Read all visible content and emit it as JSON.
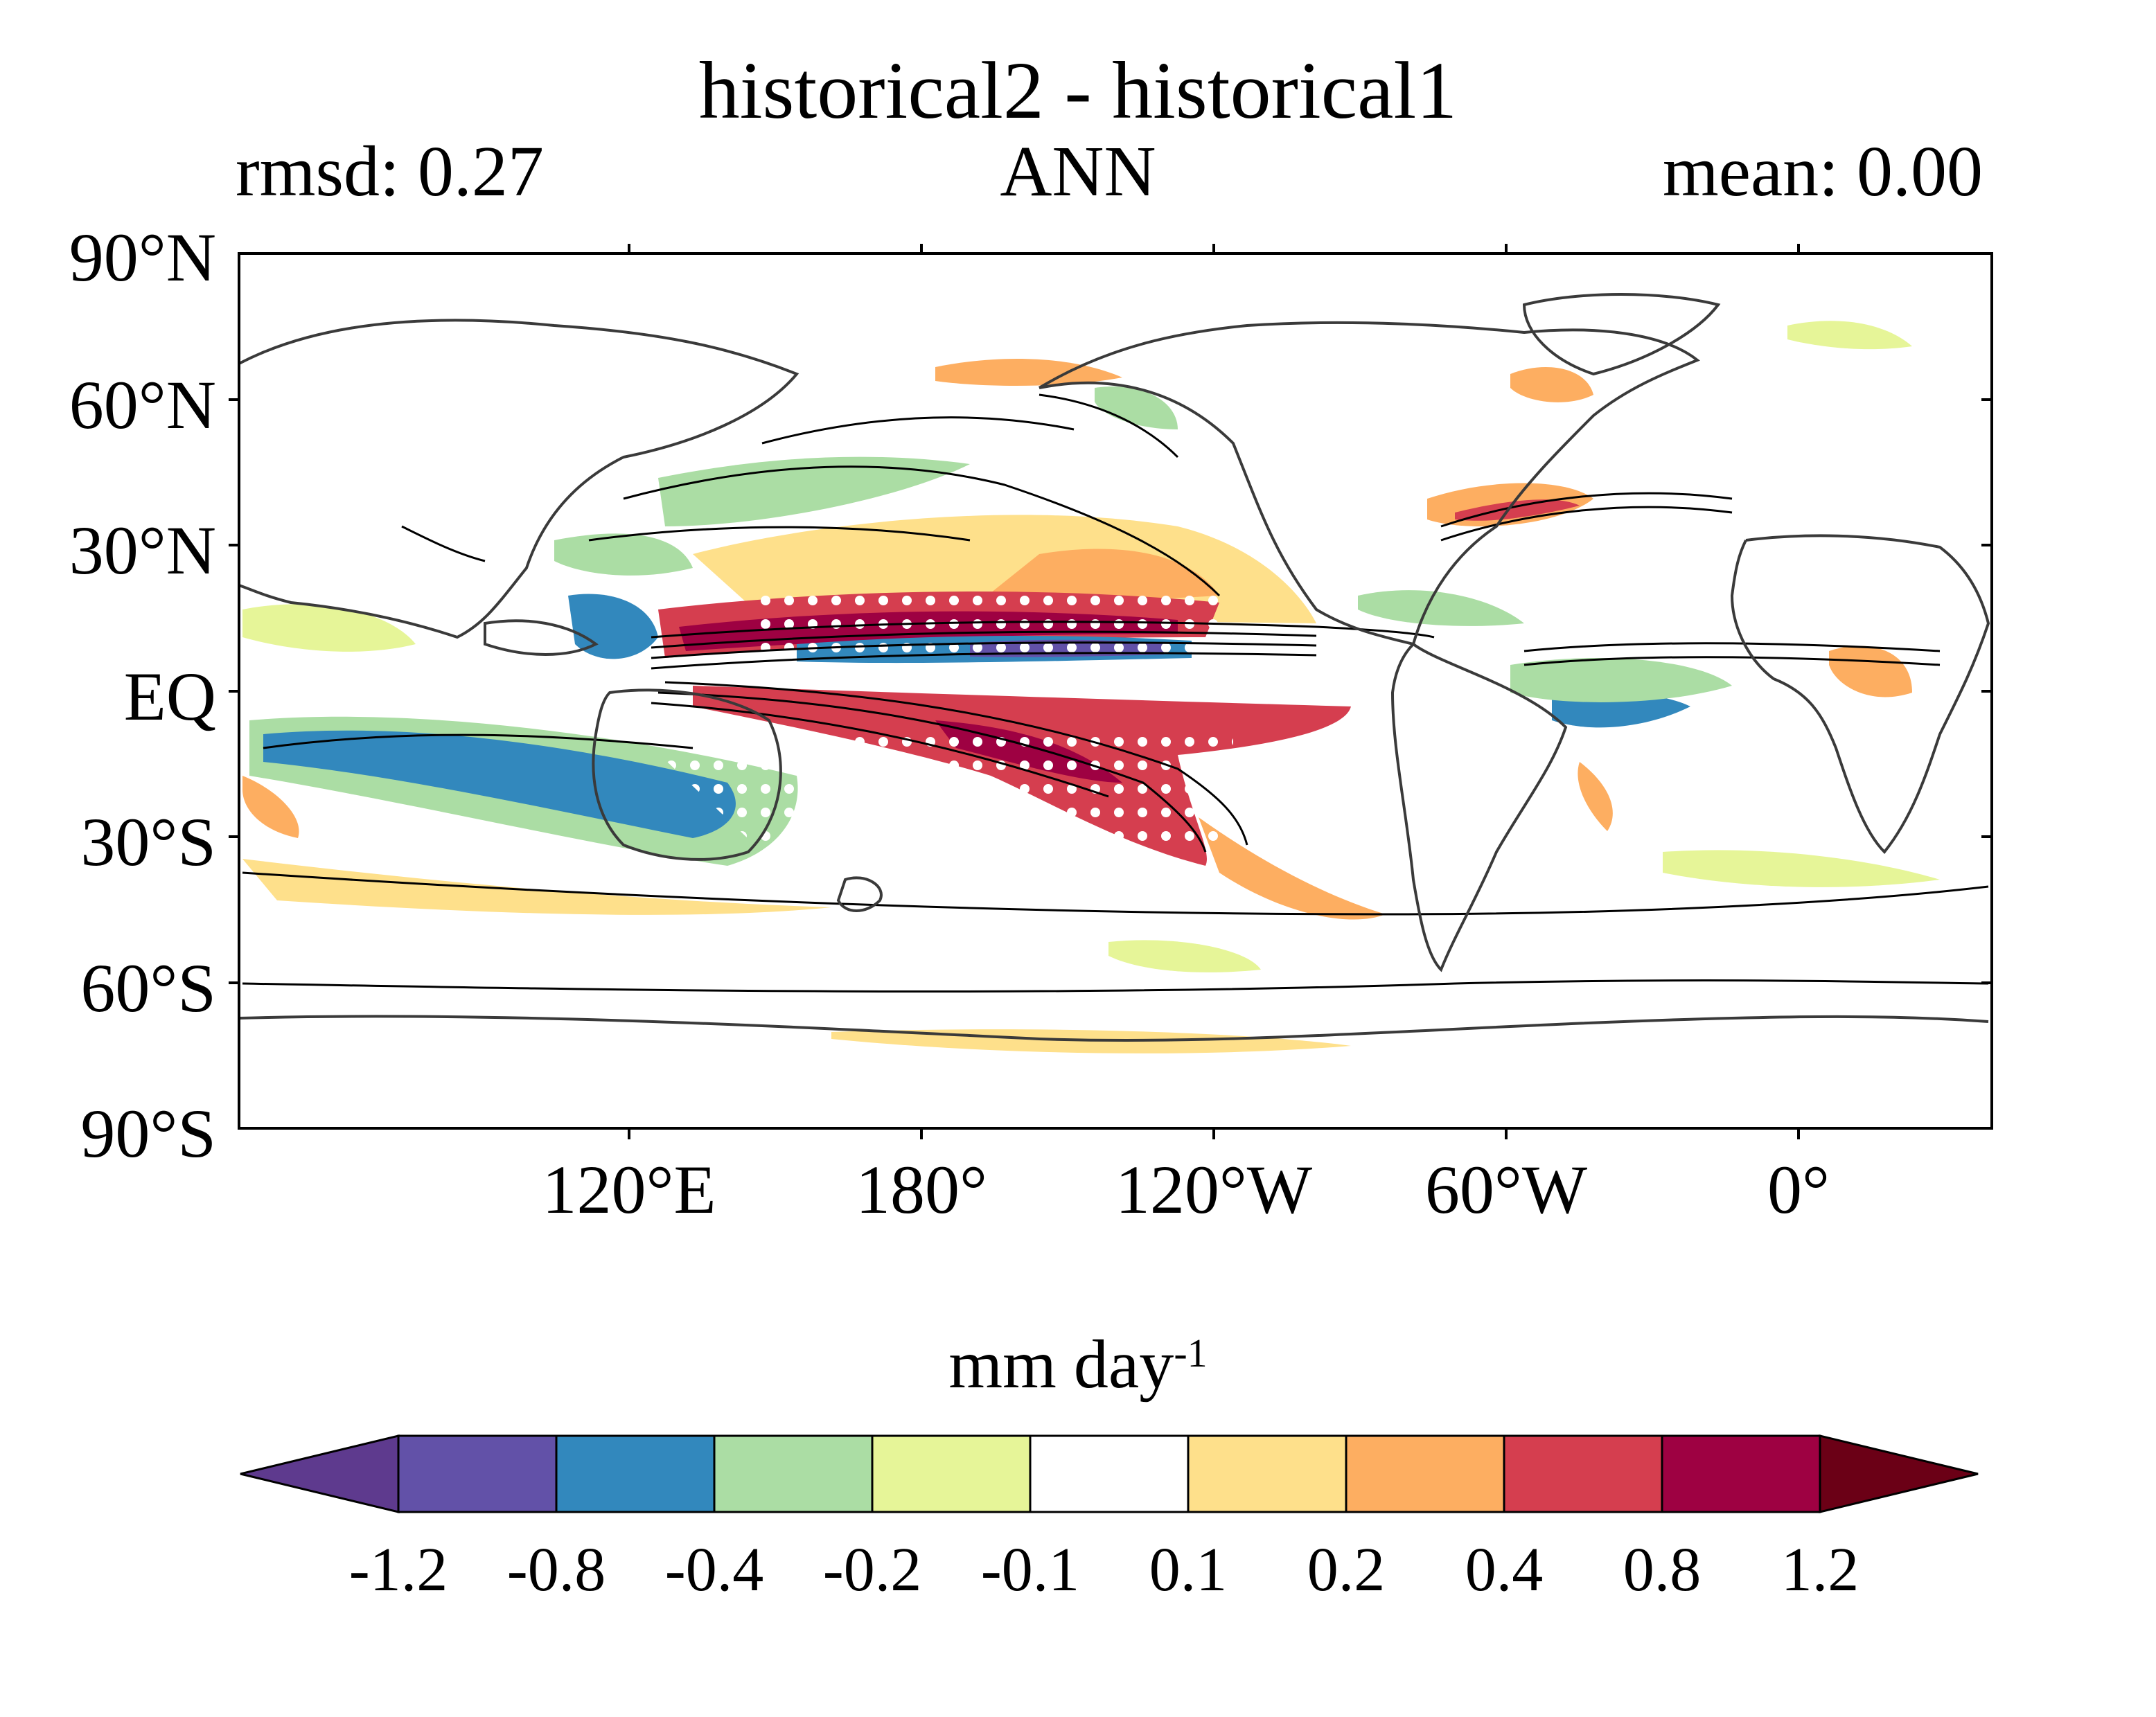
{
  "title": "historical2 - historical1",
  "left_subtitle": "rmsd: 0.27",
  "center_subtitle": "ANN",
  "right_subtitle": "mean: 0.00",
  "lat_labels": [
    "90°N",
    "60°N",
    "30°N",
    "EQ",
    "30°S",
    "60°S",
    "90°S"
  ],
  "lon_labels": [
    "120°E",
    "180°",
    "120°W",
    "60°W",
    "0°"
  ],
  "colorbar": {
    "title": "mm day",
    "title_exponent": "-1",
    "tick_labels": [
      "-1.2",
      "-0.8",
      "-0.4",
      "-0.2",
      "-0.1",
      "0.1",
      "0.2",
      "0.4",
      "0.8",
      "1.2"
    ],
    "colors": [
      "#5e3a8e",
      "#6251a8",
      "#3288bd",
      "#abdda4",
      "#e6f598",
      "#ffffff",
      "#fee08b",
      "#fdae61",
      "#d53e4f",
      "#9e0142",
      "#6b0016"
    ]
  }
}
